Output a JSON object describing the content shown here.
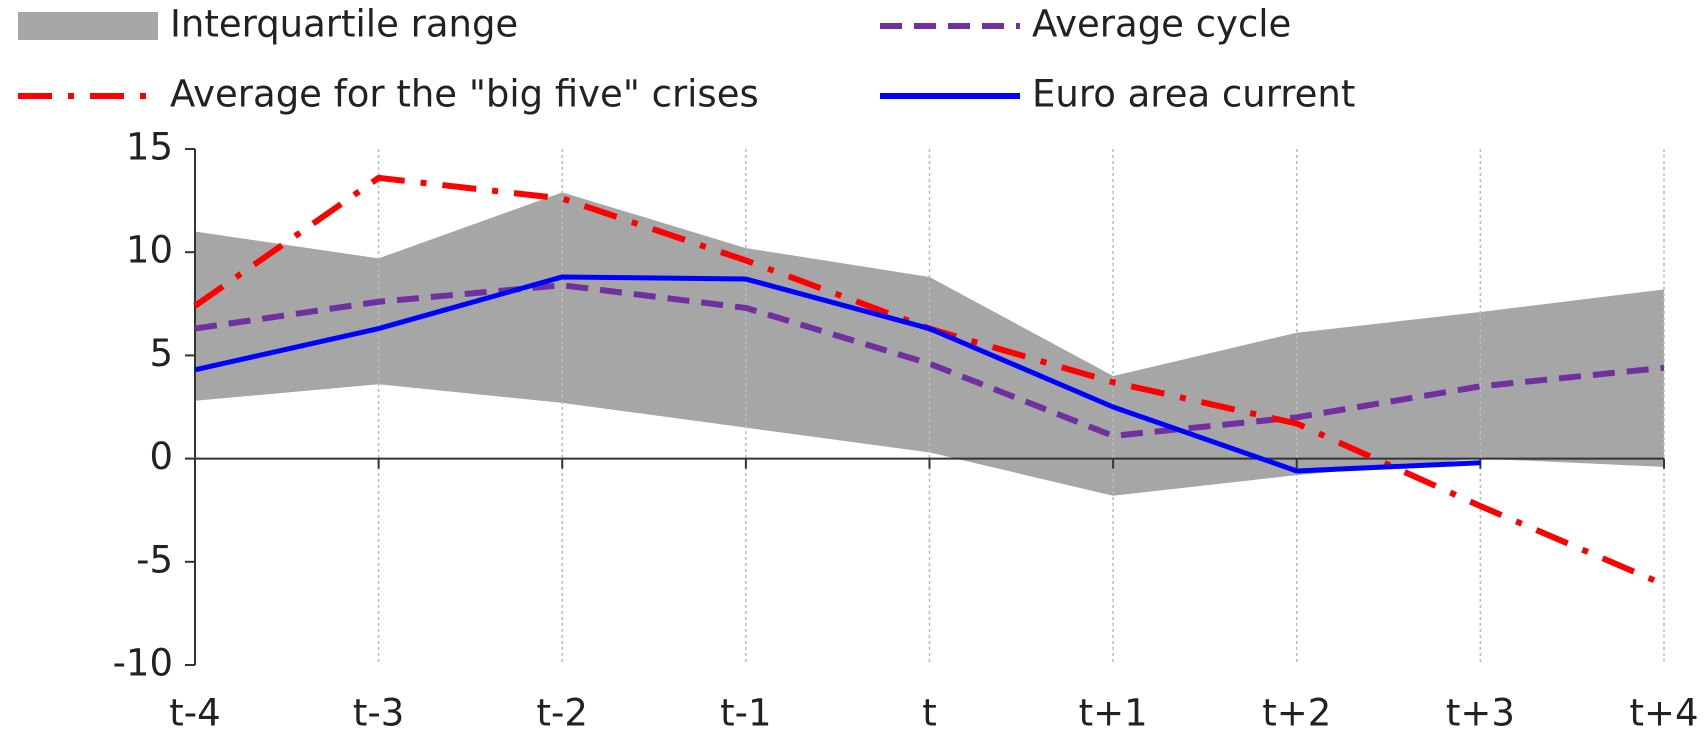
{
  "chart_data": {
    "type": "line",
    "categories": [
      "t-4",
      "t-3",
      "t-2",
      "t-1",
      "t",
      "t+1",
      "t+2",
      "t+3",
      "t+4"
    ],
    "series": [
      {
        "name": "Interquartile range",
        "color": "#a6a6a6",
        "kind": "band",
        "upper": [
          11,
          9.7,
          12.9,
          10.2,
          8.8,
          4.0,
          6.1,
          7.1,
          8.2
        ],
        "lower": [
          2.8,
          3.6,
          2.7,
          1.5,
          0.3,
          -1.8,
          -0.8,
          0.0,
          -0.4
        ]
      },
      {
        "name": "Average cycle",
        "color": "#7030a0",
        "dash": "dashed",
        "values": [
          6.3,
          7.6,
          8.4,
          7.3,
          4.6,
          1.1,
          2.0,
          3.5,
          4.4
        ]
      },
      {
        "name": "Average for the \"big five\" crises",
        "color": "#ff0000",
        "dash": "dashdot",
        "values": [
          7.4,
          13.6,
          12.6,
          9.6,
          6.3,
          3.7,
          1.7,
          -2.3,
          -6.1
        ]
      },
      {
        "name": "Euro area current",
        "color": "#0000ff",
        "dash": "solid",
        "values": [
          4.3,
          6.3,
          8.8,
          8.7,
          6.3,
          2.5,
          -0.6,
          -0.2,
          null
        ]
      }
    ],
    "ylim": [
      -10,
      15
    ],
    "yticks": [
      -10,
      -5,
      0,
      5,
      10,
      15
    ],
    "grid": true
  }
}
